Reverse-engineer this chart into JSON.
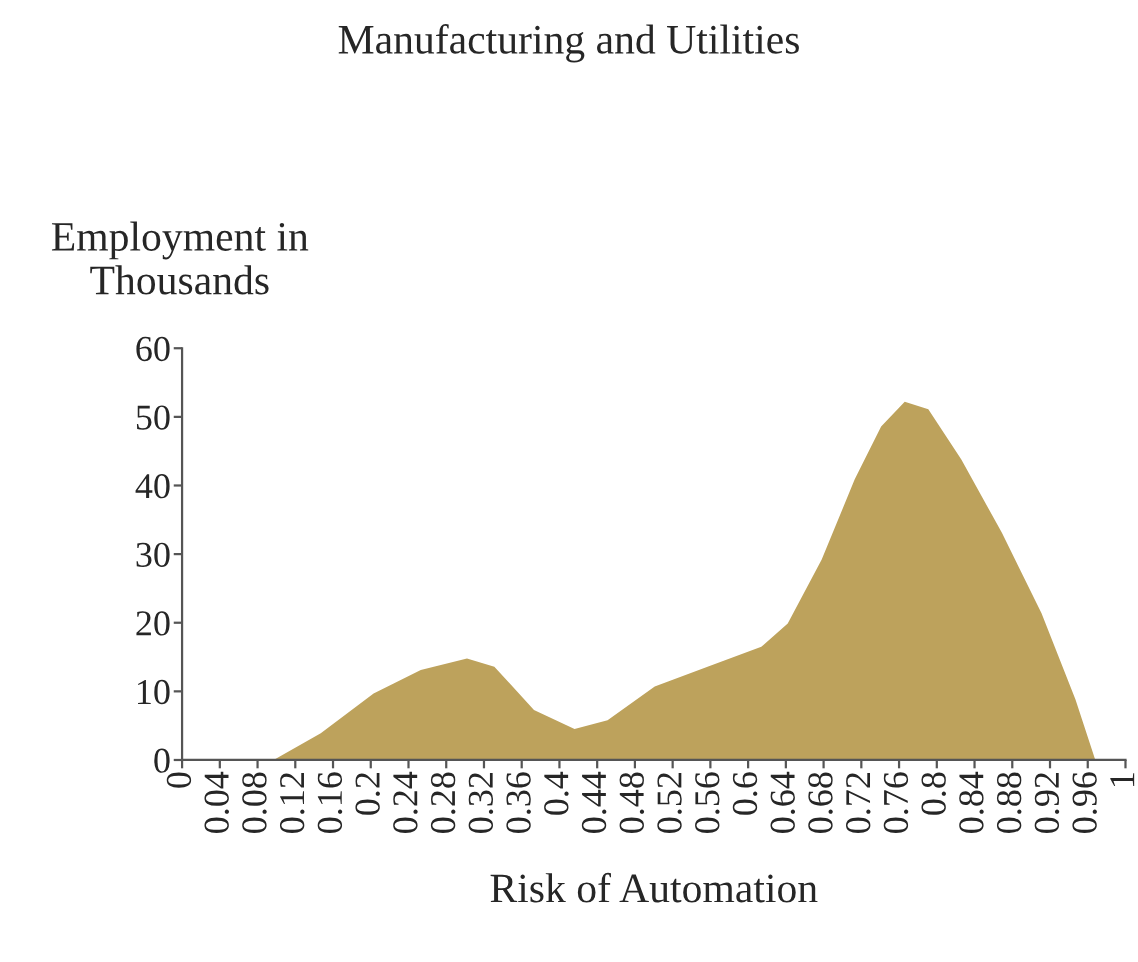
{
  "chart_data": {
    "type": "area",
    "title": "Manufacturing and Utilities",
    "xlabel": "Risk of Automation",
    "ylabel": "Employment in\nThousands",
    "x": [
      0,
      0.097,
      0.147,
      0.203,
      0.253,
      0.302,
      0.331,
      0.373,
      0.416,
      0.451,
      0.501,
      0.557,
      0.614,
      0.642,
      0.678,
      0.713,
      0.741,
      0.766,
      0.791,
      0.826,
      0.869,
      0.911,
      0.947,
      0.968
    ],
    "series": [
      {
        "color": "#bda25c",
        "values": [
          0,
          0,
          3.9,
          9.7,
          13.1,
          14.8,
          13.6,
          7.3,
          4.5,
          5.8,
          10.7,
          13.6,
          16.5,
          19.9,
          29.2,
          40.9,
          48.6,
          52.2,
          51.1,
          43.8,
          33.1,
          21.4,
          8.8,
          0
        ]
      }
    ],
    "xlim": [
      0,
      1
    ],
    "ylim": [
      0,
      60
    ],
    "yticks": [
      0,
      10,
      20,
      30,
      40,
      50,
      60
    ],
    "xticks": [
      0,
      0.04,
      0.08,
      0.12,
      0.16,
      {
        "value": 0.2,
        "label": "0.2"
      },
      0.24,
      0.28,
      0.32,
      0.36,
      {
        "value": 0.4,
        "label": "0.4"
      },
      0.44,
      0.48,
      0.52,
      0.56,
      {
        "value": 0.6,
        "label": "0.6"
      },
      0.64,
      0.68,
      0.72,
      0.76,
      {
        "value": 0.8,
        "label": "0.8"
      },
      0.84,
      0.88,
      0.92,
      0.96,
      1
    ],
    "grid": false,
    "legend": false
  }
}
